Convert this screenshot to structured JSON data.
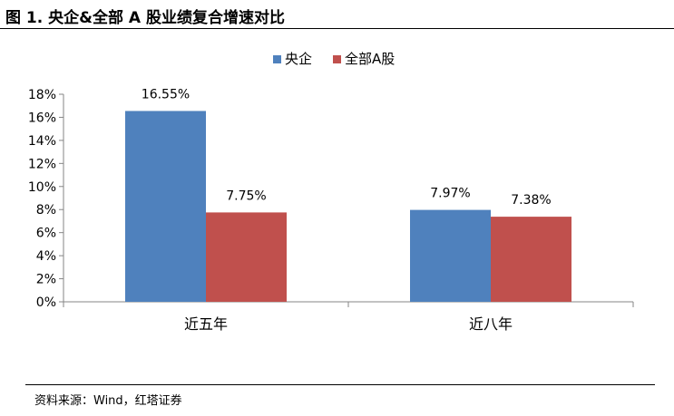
{
  "figure_title": "图 1. 央企&全部 A 股业绩复合增速对比",
  "source_note": "资料来源：Wind，红塔证券",
  "colors": {
    "series_1": "#4f81bd",
    "series_2": "#c0504d",
    "axis": "#868686"
  },
  "chart_data": {
    "type": "bar",
    "categories": [
      "近五年",
      "近八年"
    ],
    "series": [
      {
        "name": "央企",
        "values": [
          16.55,
          7.97
        ],
        "labels": [
          "16.55%",
          "7.97%"
        ]
      },
      {
        "name": "全部A股",
        "values": [
          7.75,
          7.38
        ],
        "labels": [
          "7.75%",
          "7.38%"
        ]
      }
    ],
    "ylim": [
      0,
      18
    ],
    "yticks": [
      "0%",
      "2%",
      "4%",
      "6%",
      "8%",
      "10%",
      "12%",
      "14%",
      "16%",
      "18%"
    ],
    "xlabel": "",
    "ylabel": "",
    "legend_position": "top",
    "grid": false
  }
}
